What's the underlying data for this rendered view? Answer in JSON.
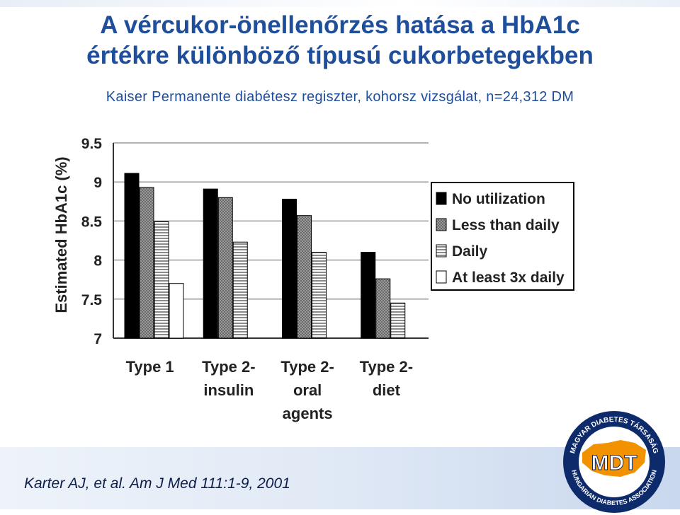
{
  "slide": {
    "title_line1": "A vércukor-önellenőrzés hatása a HbA1c",
    "title_line2": "értékre különböző típusú cukorbetegekben",
    "subtitle": "Kaiser Permanente diabétesz regiszter, kohorsz vizsgálat, n=24,312 DM",
    "citation": "Karter AJ, et al. Am J Med 111:1-9, 2001"
  },
  "logo": {
    "center_text": "MDT",
    "ring_text_top": "MAGYAR DIABETES TÁRSASÁG",
    "ring_text_bottom": "HUNGARIAN DIABETES ASSOCIATION"
  },
  "chart_data": {
    "type": "bar",
    "ylabel": "Estimated HbA1c (%)",
    "ylim": [
      7,
      9.5
    ],
    "yticks": [
      "9.5",
      "9",
      "8.5",
      "8",
      "7.5",
      "7"
    ],
    "grid": true,
    "legend_position": "right",
    "categories": [
      [
        "Type 1"
      ],
      [
        "Type 2-",
        "insulin"
      ],
      [
        "Type 2-",
        "oral",
        "agents"
      ],
      [
        "Type 2-",
        "diet"
      ]
    ],
    "series": [
      {
        "name": "No utilization",
        "values": [
          9.11,
          8.91,
          8.78,
          8.1
        ]
      },
      {
        "name": "Less than daily",
        "values": [
          8.93,
          8.8,
          8.57,
          7.76
        ]
      },
      {
        "name": "Daily",
        "values": [
          8.49,
          8.23,
          8.1,
          7.45
        ]
      },
      {
        "name": "At least 3x daily",
        "values": [
          7.7,
          null,
          null,
          null
        ]
      }
    ]
  },
  "colors": {
    "title": "#1f4e9a",
    "bar_no_utilization": "#000000",
    "bar_less_than_daily": "#8a8a8a",
    "bar_daily": "#c8c8c8",
    "bar_3x_daily": "#ffffff",
    "logo_orange": "#f39200",
    "logo_navy": "#0d2a6b"
  }
}
